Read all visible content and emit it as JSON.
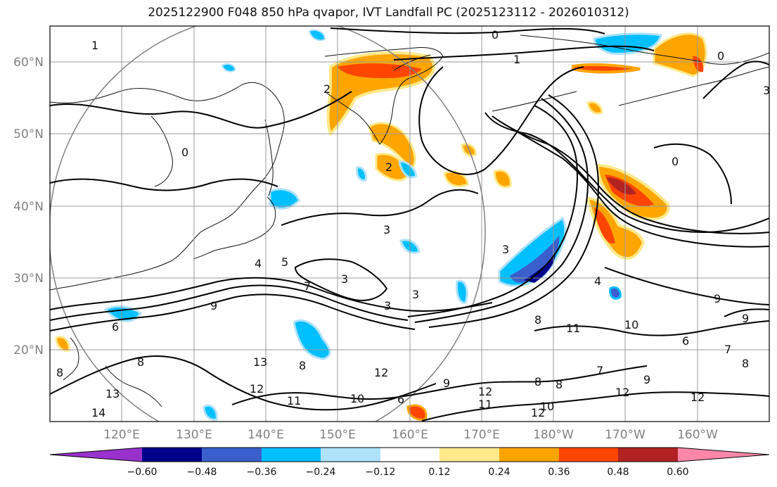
{
  "title": "2025122900 F048 850 hPa qvapor, IVT Landfall PC (2025123112 - 2026010312)",
  "axes": {
    "lat_labels": [
      "60°N",
      "50°N",
      "40°N",
      "30°N",
      "20°N"
    ],
    "lon_labels": [
      "120°E",
      "130°E",
      "140°E",
      "150°E",
      "160°E",
      "170°E",
      "180°W",
      "170°W",
      "160°W"
    ]
  },
  "colorbar": {
    "labels": [
      "−0.60",
      "−0.48",
      "−0.36",
      "−0.24",
      "−0.12",
      "0.12",
      "0.24",
      "0.36",
      "0.48",
      "0.60"
    ],
    "colors": [
      "#9932cc",
      "#00008b",
      "#3a5fcd",
      "#00bfff",
      "#aee2fb",
      "#ffffff",
      "#ffe98a",
      "#ffa500",
      "#ff4500",
      "#b22222",
      "#ff88aa"
    ]
  },
  "contour_labels": [
    "0",
    "1",
    "0",
    "1",
    "0",
    "0",
    "2",
    "2",
    "3",
    "3",
    "3",
    "3",
    "4",
    "5",
    "7",
    "3",
    "3",
    "9",
    "9",
    "6",
    "6",
    "8",
    "8",
    "11",
    "10",
    "8",
    "12",
    "12",
    "13",
    "13",
    "14",
    "12",
    "11",
    "10",
    "9",
    "12",
    "12",
    "11",
    "10",
    "8",
    "6",
    "7",
    "8",
    "9",
    "8",
    "7",
    "12",
    "9",
    "4",
    "8"
  ]
}
